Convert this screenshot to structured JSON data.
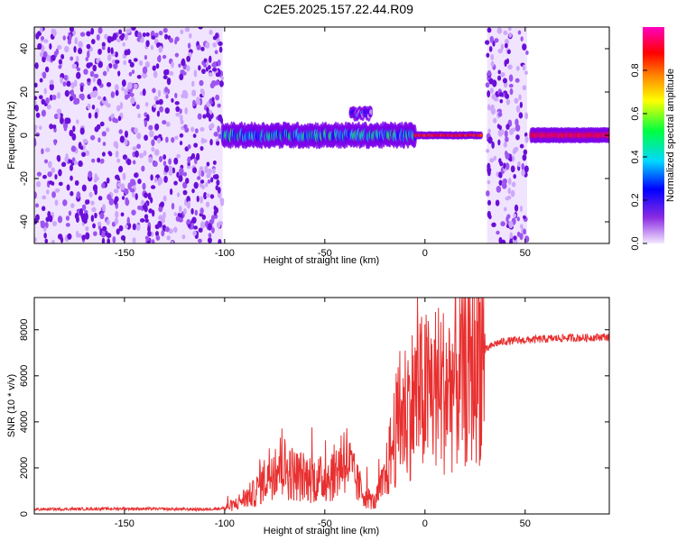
{
  "title": "C2E5.2025.157.22.44.R09",
  "chart_data": [
    {
      "type": "heatmap",
      "xlabel": "Height of straight line (km)",
      "ylabel": "Frequency (Hz)",
      "xlim": [
        -195,
        92
      ],
      "ylim": [
        -50,
        50
      ],
      "x_ticks": [
        -150,
        -100,
        -50,
        0,
        50
      ],
      "y_ticks": [
        -40,
        -20,
        0,
        20,
        40
      ],
      "colorbar": {
        "label": "Normalized spectral amplitude",
        "range": [
          0,
          1
        ],
        "ticks": [
          0.0,
          0.2,
          0.4,
          0.6,
          0.8
        ],
        "colormap": [
          "#e8d4ff",
          "#7b00e8",
          "#0000ff",
          "#00d8ff",
          "#00ff40",
          "#ffff00",
          "#ff8000",
          "#ff0000",
          "#ff00c0"
        ]
      },
      "regions": [
        {
          "x_range": [
            -195,
            -101
          ],
          "freq_range": [
            -50,
            50
          ],
          "description_level": 0.15
        },
        {
          "x_range": [
            -101,
            -5
          ],
          "center_freq": 0,
          "width_hz": 6,
          "level": 0.35
        },
        {
          "x_range": [
            -37,
            -27
          ],
          "center_freq": 10,
          "width_hz": 3,
          "level": 0.2
        },
        {
          "x_range": [
            -5,
            28
          ],
          "center_freq": 0,
          "width_hz": 2,
          "level": 0.85
        },
        {
          "x_range": [
            31,
            51
          ],
          "freq_range": [
            -50,
            50
          ],
          "description_level": 0.12
        },
        {
          "x_range": [
            53,
            92
          ],
          "center_freq": 0,
          "width_hz": 4,
          "level": 0.9
        }
      ]
    },
    {
      "type": "line",
      "xlabel": "Height of straight line (km)",
      "ylabel": "SNR (10 * v/v)",
      "xlim": [
        -195,
        92
      ],
      "ylim": [
        0,
        9400
      ],
      "x_ticks": [
        -150,
        -100,
        -50,
        0,
        50
      ],
      "y_ticks": [
        0,
        2000,
        4000,
        6000,
        8000
      ],
      "color": "#e83030",
      "series": [
        {
          "x": [
            -195,
            -150,
            -110,
            -100,
            -95,
            -90,
            -85,
            -80,
            -75,
            -70,
            -65,
            -60,
            -55,
            -50,
            -45,
            -40,
            -35,
            -30,
            -25,
            -20,
            -15,
            -10,
            -5,
            0,
            5,
            10,
            15,
            20,
            25,
            30,
            35,
            40,
            50,
            60,
            70,
            80,
            90,
            92
          ],
          "y": [
            200,
            230,
            200,
            250,
            400,
            700,
            900,
            1500,
            2200,
            2000,
            1700,
            1600,
            1500,
            1500,
            1800,
            2600,
            1500,
            800,
            500,
            1500,
            3500,
            4500,
            5000,
            5200,
            5500,
            5400,
            5800,
            6200,
            6700,
            7100,
            7400,
            7500,
            7550,
            7600,
            7650,
            7650,
            7700,
            7650
          ]
        }
      ]
    }
  ]
}
